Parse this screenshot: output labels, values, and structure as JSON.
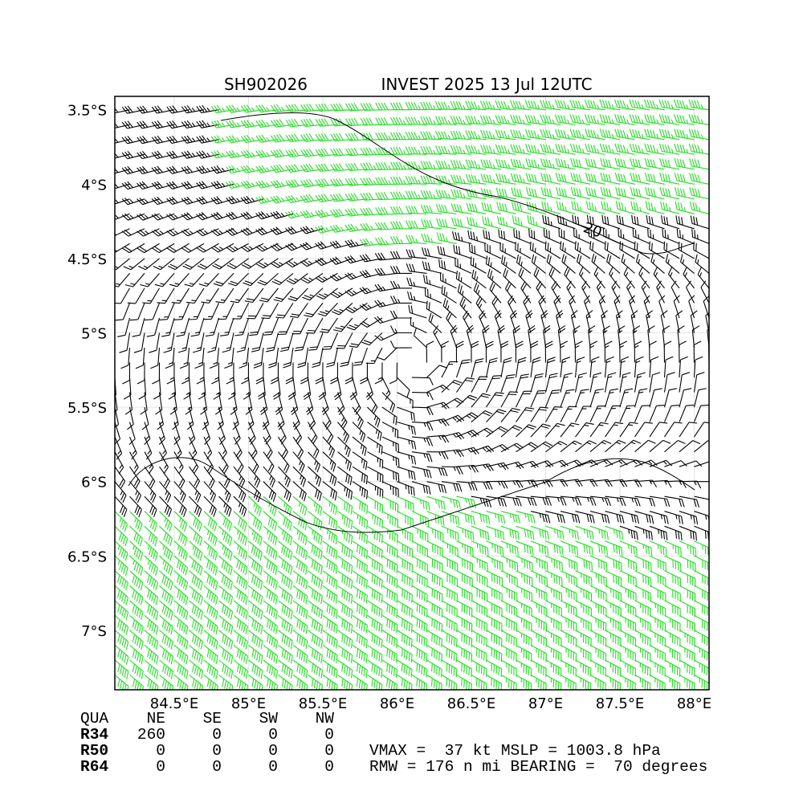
{
  "map": {
    "title_left": "SH902026",
    "title_right": "INVEST 2025 13 Jul 12UTC",
    "xlim": [
      84.1,
      88.1
    ],
    "ylim": [
      -7.4,
      -3.41
    ],
    "xticks": [
      {
        "value": 84.5,
        "label": "84.5°E"
      },
      {
        "value": 85,
        "label": "85°E"
      },
      {
        "value": 85.5,
        "label": "85.5°E"
      },
      {
        "value": 86,
        "label": "86°E"
      },
      {
        "value": 86.5,
        "label": "86.5°E"
      },
      {
        "value": 87,
        "label": "87°E"
      },
      {
        "value": 87.5,
        "label": "87.5°E"
      },
      {
        "value": 88,
        "label": "88°E"
      }
    ],
    "yticks": [
      {
        "value": -3.5,
        "label": "3.5°S"
      },
      {
        "value": -4,
        "label": "4°S"
      },
      {
        "value": -4.5,
        "label": "4.5°S"
      },
      {
        "value": -5,
        "label": "5°S"
      },
      {
        "value": -5.5,
        "label": "5.5°S"
      },
      {
        "value": -6,
        "label": "6°S"
      },
      {
        "value": -6.5,
        "label": "6.5°S"
      },
      {
        "value": -7,
        "label": "7°S"
      }
    ],
    "contour_label": "20"
  },
  "radii_table": {
    "header": [
      "QUA",
      "NE",
      "SE",
      "SW",
      "NW"
    ],
    "rows": [
      [
        "R34",
        "260",
        "0",
        "0",
        "0"
      ],
      [
        "R50",
        "0",
        "0",
        "0",
        "0"
      ],
      [
        "R64",
        "0",
        "0",
        "0",
        "0"
      ]
    ]
  },
  "stats": [
    "VMAX =  37 kt MSLP = 1003.8 hPa",
    "RMW = 176 n mi BEARING =  70 degrees"
  ]
}
